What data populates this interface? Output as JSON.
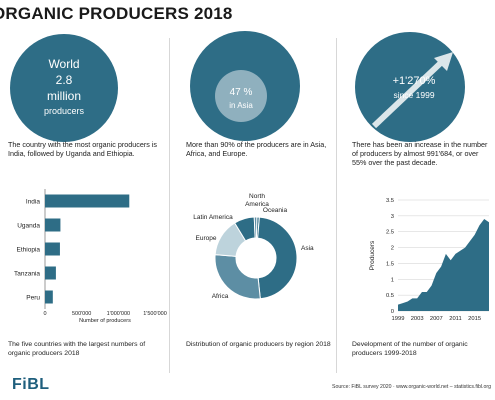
{
  "title": "ORGANIC PRODUCERS 2018",
  "colors": {
    "dark_teal": "#2e6d86",
    "mid_teal": "#5d8ea4",
    "light_teal": "#bdd3dc",
    "arrow": "#dbe6ea"
  },
  "panel1": {
    "circle_line1": "World",
    "circle_line2": "2.8",
    "circle_line3": "million",
    "circle_line4": "producers",
    "text": "The country with the most organic producers is India, followed by Uganda and Ethiopia.",
    "caption": "The five countries with the largest numbers of organic producers 2018"
  },
  "panel2": {
    "inner_value": "47 %",
    "inner_label": "in Asia",
    "text": "More than 90% of the producers are in Asia, Africa, and Europe.",
    "caption": "Distribution of organic producers by region 2018"
  },
  "panel3": {
    "circle_value": "+1'270%",
    "circle_label": "since 1999",
    "text": "There has been an increase in the number of producers by almost 991'684, or over 55% over the past decade.",
    "caption": "Development of the number of organic producers 1999-2018"
  },
  "footer": {
    "logo": "FiBL",
    "source": "Source: FiBL survey 2020 · www.organic-world.net – statistics.fibl.org"
  },
  "chart_data": [
    {
      "type": "bar",
      "orientation": "horizontal",
      "categories": [
        "India",
        "Uganda",
        "Ethiopia",
        "Tanzania",
        "Peru"
      ],
      "values": [
        1149371,
        210352,
        203602,
        148610,
        106585
      ],
      "xlabel": "Number of producers",
      "xticks": [
        "0",
        "500'000",
        "1'000'000",
        "1'500'000"
      ],
      "xlim": [
        0,
        1500000
      ],
      "color": "#2e6d86"
    },
    {
      "type": "pie",
      "donut": true,
      "labels": [
        "Asia",
        "Africa",
        "Latin America",
        "Europe",
        "North America",
        "Oceania"
      ],
      "values": [
        47,
        28,
        8,
        15,
        1,
        1
      ],
      "colors": [
        "#2e6d86",
        "#5d8ea4",
        "#2e6d86",
        "#bdd3dc",
        "#5d8ea4",
        "#2e6d86"
      ]
    },
    {
      "type": "area",
      "x": [
        1999,
        2000,
        2001,
        2002,
        2003,
        2004,
        2005,
        2006,
        2007,
        2008,
        2009,
        2010,
        2011,
        2012,
        2013,
        2014,
        2015,
        2016,
        2017,
        2018
      ],
      "values": [
        0.2,
        0.25,
        0.3,
        0.4,
        0.4,
        0.6,
        0.6,
        0.8,
        1.2,
        1.4,
        1.8,
        1.6,
        1.8,
        1.9,
        2.0,
        2.2,
        2.4,
        2.7,
        2.9,
        2.8
      ],
      "ylabel": "Producers",
      "ylim": [
        0,
        3.5
      ],
      "yticks": [
        "0",
        "0.5",
        "1",
        "1.5",
        "2",
        "2.5",
        "3",
        "3.5"
      ],
      "xticks": [
        "1999",
        "2003",
        "2007",
        "2011",
        "2015"
      ],
      "color": "#2e6d86"
    }
  ]
}
